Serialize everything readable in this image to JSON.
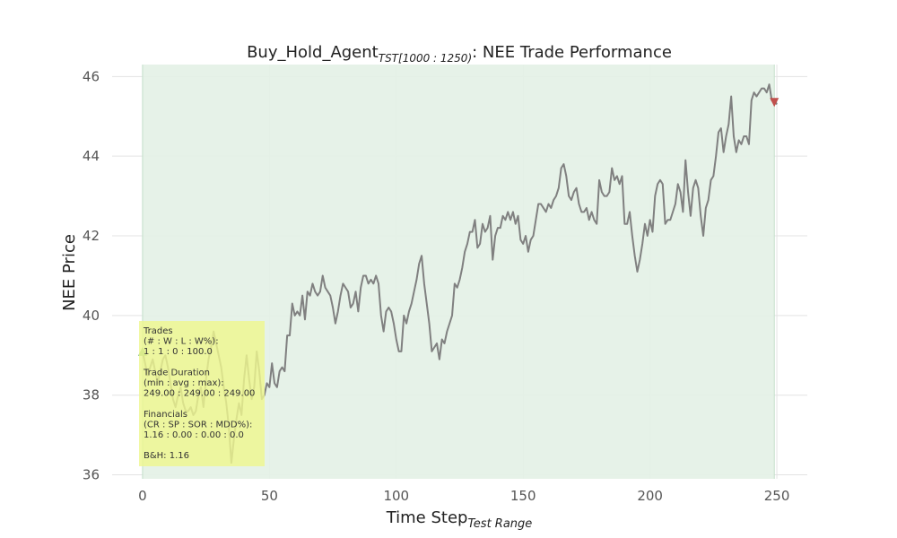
{
  "chart_data": {
    "type": "line",
    "title": {
      "main": "Buy_Hold_Agent",
      "subscript": "TST[1000 : 1250)",
      "rest": ": NEE Trade Performance"
    },
    "xlabel": {
      "main": "Time Step",
      "subscript": "Test Range"
    },
    "ylabel": "NEE Price",
    "xlim": [
      -12,
      262
    ],
    "ylim": [
      35.9,
      46.3
    ],
    "xticks": [
      0,
      50,
      100,
      150,
      200,
      250
    ],
    "yticks": [
      36,
      38,
      40,
      42,
      44,
      46
    ],
    "grid": true,
    "colors": {
      "line": "#808080",
      "holding_region": "#e3f1e6",
      "holding_edge": "#c4e0cb",
      "buy_marker": "#7cb87c",
      "sell_marker": "#c0504d",
      "stats_box": "#eef68f",
      "grid": "#e3e3e3"
    },
    "holding_region": {
      "start": 0,
      "end": 249
    },
    "markers": [
      {
        "kind": "buy",
        "x": 0,
        "y": 39.1,
        "shape": "triangle-up"
      },
      {
        "kind": "sell",
        "x": 249,
        "y": 45.35,
        "shape": "triangle-down"
      }
    ],
    "series": [
      {
        "x_start": 0,
        "values": [
          39.1,
          38.8,
          38.5,
          38.7,
          38.9,
          38.6,
          38.3,
          38.6,
          38.9,
          39.0,
          38.7,
          38.3,
          37.9,
          37.7,
          38.0,
          38.2,
          37.8,
          37.6,
          37.6,
          37.7,
          37.5,
          37.6,
          38.0,
          38.2,
          37.7,
          38.4,
          38.9,
          39.2,
          39.6,
          39.3,
          39.0,
          38.7,
          38.2,
          37.8,
          37.2,
          36.3,
          36.9,
          37.4,
          37.8,
          37.5,
          38.4,
          39.0,
          38.4,
          37.9,
          38.2,
          39.1,
          38.6,
          37.9,
          38.0,
          38.3,
          38.2,
          38.8,
          38.3,
          38.2,
          38.6,
          38.7,
          38.6,
          39.5,
          39.5,
          40.3,
          40.0,
          40.1,
          40.0,
          40.5,
          39.9,
          40.6,
          40.5,
          40.8,
          40.6,
          40.5,
          40.6,
          41.0,
          40.7,
          40.6,
          40.5,
          40.2,
          39.8,
          40.1,
          40.5,
          40.8,
          40.7,
          40.6,
          40.2,
          40.3,
          40.6,
          40.1,
          40.7,
          41.0,
          41.0,
          40.8,
          40.9,
          40.8,
          41.0,
          40.8,
          40.0,
          39.6,
          40.1,
          40.2,
          40.1,
          39.8,
          39.4,
          39.1,
          39.1,
          40.0,
          39.8,
          40.1,
          40.3,
          40.6,
          40.9,
          41.3,
          41.5,
          40.8,
          40.3,
          39.8,
          39.1,
          39.2,
          39.3,
          38.9,
          39.4,
          39.3,
          39.6,
          39.8,
          40.0,
          40.8,
          40.7,
          40.9,
          41.2,
          41.6,
          41.8,
          42.1,
          42.1,
          42.4,
          41.7,
          41.8,
          42.3,
          42.1,
          42.2,
          42.5,
          41.4,
          42.0,
          42.2,
          42.2,
          42.5,
          42.4,
          42.6,
          42.4,
          42.6,
          42.3,
          42.5,
          41.9,
          41.8,
          42.0,
          41.6,
          41.9,
          42.0,
          42.4,
          42.8,
          42.8,
          42.7,
          42.6,
          42.8,
          42.7,
          42.9,
          43.0,
          43.2,
          43.7,
          43.8,
          43.5,
          43.0,
          42.9,
          43.1,
          43.2,
          42.8,
          42.6,
          42.6,
          42.7,
          42.4,
          42.6,
          42.4,
          42.3,
          43.4,
          43.1,
          43.0,
          43.0,
          43.1,
          43.7,
          43.4,
          43.5,
          43.3,
          43.5,
          42.3,
          42.3,
          42.6,
          42.0,
          41.5,
          41.1,
          41.4,
          41.8,
          42.3,
          42.0,
          42.4,
          42.1,
          43.0,
          43.3,
          43.4,
          43.3,
          42.3,
          42.4,
          42.4,
          42.6,
          42.8,
          43.3,
          43.1,
          42.6,
          43.9,
          43.1,
          42.5,
          43.2,
          43.4,
          43.2,
          42.5,
          42.0,
          42.7,
          42.9,
          43.4,
          43.5,
          44.0,
          44.6,
          44.7,
          44.1,
          44.5,
          44.8,
          45.5,
          44.5,
          44.1,
          44.4,
          44.3,
          44.5,
          44.5,
          44.3,
          45.4,
          45.6,
          45.5,
          45.6,
          45.7,
          45.7,
          45.6,
          45.8,
          45.4,
          45.4,
          45.3
        ]
      }
    ],
    "stats_box": {
      "lines": [
        "Trades",
        "(# : W : L : W%):",
        "1 : 1 : 0 : 100.0",
        "",
        "Trade Duration",
        "(min : avg : max):",
        "249.00 : 249.00 : 249.00",
        "",
        "Financials",
        "(CR : SP : SOR : MDD%):",
        "1.16 : 0.00 : 0.00 : 0.0",
        "",
        "B&H: 1.16"
      ]
    }
  }
}
